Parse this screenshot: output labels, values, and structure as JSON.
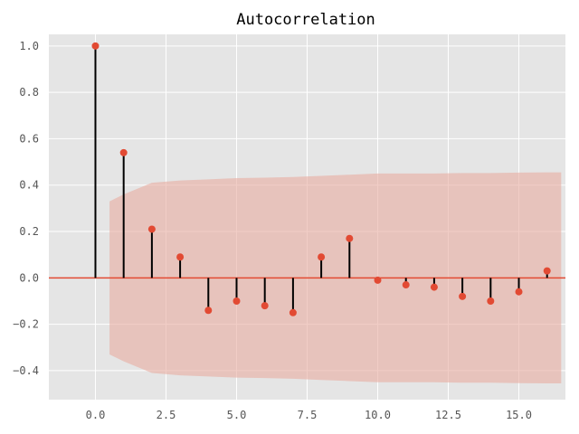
{
  "chart_data": {
    "type": "stem",
    "title": "Autocorrelation",
    "xlabel": "",
    "ylabel": "",
    "xlim": [
      -1.65,
      16.65
    ],
    "ylim": [
      -0.525,
      1.05
    ],
    "xticks": [
      0.0,
      2.5,
      5.0,
      7.5,
      10.0,
      12.5,
      15.0
    ],
    "xtick_labels": [
      "0.0",
      "2.5",
      "5.0",
      "7.5",
      "10.0",
      "12.5",
      "15.0"
    ],
    "yticks": [
      -0.4,
      -0.2,
      0.0,
      0.2,
      0.4,
      0.6,
      0.8,
      1.0
    ],
    "ytick_labels": [
      "−0.4",
      "−0.2",
      "0.0",
      "0.2",
      "0.4",
      "0.6",
      "0.8",
      "1.0"
    ],
    "grid": true,
    "lags": [
      0,
      1,
      2,
      3,
      4,
      5,
      6,
      7,
      8,
      9,
      10,
      11,
      12,
      13,
      14,
      15,
      16
    ],
    "values": [
      1.0,
      0.54,
      0.21,
      0.09,
      -0.14,
      -0.1,
      -0.12,
      -0.15,
      0.09,
      0.17,
      -0.01,
      -0.03,
      -0.04,
      -0.08,
      -0.1,
      -0.06,
      0.03
    ],
    "confidence_band": {
      "x": [
        0.5,
        1.0,
        2.0,
        3.0,
        4.0,
        5.0,
        6.0,
        7.0,
        8.0,
        9.0,
        10.0,
        11.0,
        12.0,
        13.0,
        14.0,
        15.0,
        16.0,
        16.5
      ],
      "upper": [
        0.33,
        0.36,
        0.41,
        0.42,
        0.425,
        0.43,
        0.432,
        0.435,
        0.44,
        0.445,
        0.45,
        0.45,
        0.45,
        0.452,
        0.452,
        0.454,
        0.455,
        0.455
      ],
      "lower": [
        -0.33,
        -0.36,
        -0.41,
        -0.42,
        -0.425,
        -0.43,
        -0.432,
        -0.435,
        -0.44,
        -0.445,
        -0.45,
        -0.45,
        -0.45,
        -0.452,
        -0.452,
        -0.454,
        -0.455,
        -0.455
      ]
    },
    "colors": {
      "background": "#e5e5e5",
      "grid": "#ffffff",
      "stem": "#000000",
      "marker": "#e24a33",
      "zero_line": "#e24a33",
      "band": "#e8aba0",
      "band_opacity": 0.6
    }
  }
}
